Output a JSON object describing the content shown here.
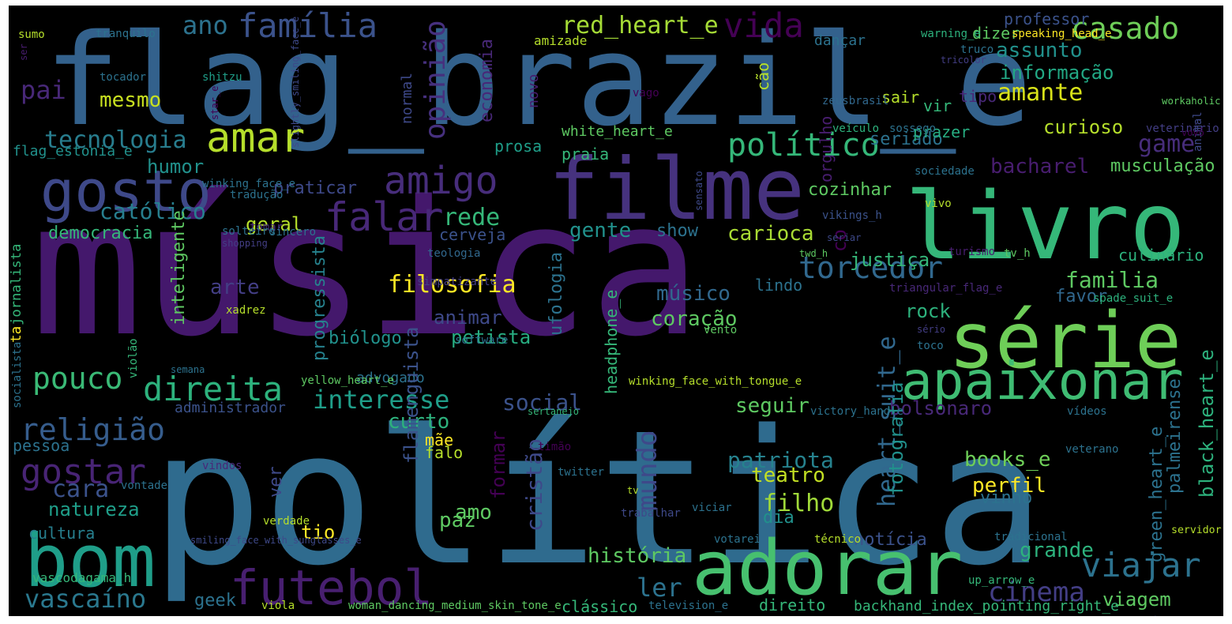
{
  "wordcloud": {
    "background": "#000000",
    "palette": [
      "#440154",
      "#482878",
      "#3e4989",
      "#31688e",
      "#26828e",
      "#1f9e89",
      "#35b779",
      "#6ece58",
      "#b5de2b",
      "#fde725"
    ],
    "words": [
      {
        "text": "música",
        "color": "#44186c"
      },
      {
        "text": "política",
        "color": "#2f6b8e"
      },
      {
        "text": "flag_brazil_e",
        "color": "#33618c"
      },
      {
        "text": "livro",
        "color": "#35b779"
      },
      {
        "text": "filme",
        "color": "#46327e"
      },
      {
        "text": "série",
        "color": "#6ece58"
      },
      {
        "text": "adorar",
        "color": "#47c06f"
      },
      {
        "text": "futebol",
        "color": "#481f70"
      },
      {
        "text": "bom",
        "color": "#1f9e89"
      },
      {
        "text": "apaixonar",
        "color": "#3fbc73"
      },
      {
        "text": "gosto",
        "color": "#3e4989"
      },
      {
        "text": "amar",
        "color": "#b5de2b"
      },
      {
        "text": "amigo",
        "color": "#472d7b"
      },
      {
        "text": "falar",
        "color": "#482878"
      },
      {
        "text": "direita",
        "color": "#2db27d"
      },
      {
        "text": "político",
        "color": "#35b779"
      },
      {
        "text": "torcedor",
        "color": "#31688e"
      },
      {
        "text": "viajar",
        "color": "#2c728e"
      },
      {
        "text": "religião",
        "color": "#365d8d"
      },
      {
        "text": "gostar",
        "color": "#482475"
      },
      {
        "text": "pouco",
        "color": "#3aba76"
      },
      {
        "text": "cinema",
        "color": "#433e85"
      },
      {
        "text": "vascaíno",
        "color": "#2a788e"
      },
      {
        "text": "casado",
        "color": "#6ece58"
      },
      {
        "text": "vida",
        "color": "#440154"
      },
      {
        "text": "família",
        "color": "#3b528b"
      },
      {
        "text": "red_heart_e",
        "color": "#a5db36"
      },
      {
        "text": "opinião",
        "color": "#46307e"
      },
      {
        "text": "tecnologia",
        "color": "#287d8e"
      },
      {
        "text": "católico",
        "color": "#277f8e"
      },
      {
        "text": "amante",
        "color": "#d8e219"
      },
      {
        "text": "game",
        "color": "#472d7b"
      },
      {
        "text": "heart_suit_e",
        "color": "#31688e"
      },
      {
        "text": "mundo",
        "color": "#3e4989"
      },
      {
        "text": "rede",
        "color": "#35b779"
      },
      {
        "text": "filosofia",
        "color": "#fde725"
      },
      {
        "text": "patriota",
        "color": "#26828e"
      },
      {
        "text": "filho",
        "color": "#a0da39"
      },
      {
        "text": "ler",
        "color": "#2c728e"
      },
      {
        "text": "interesse",
        "color": "#1f9e89"
      },
      {
        "text": "social",
        "color": "#3b528b"
      },
      {
        "text": "humor",
        "color": "#21918c"
      },
      {
        "text": "pai",
        "color": "#482878"
      },
      {
        "text": "ano",
        "color": "#2c728e"
      },
      {
        "text": "assunto",
        "color": "#21918c"
      },
      {
        "text": "informação",
        "color": "#22a884"
      },
      {
        "text": "mesmo",
        "color": "#c8e020"
      },
      {
        "text": "economia",
        "color": "#482878"
      },
      {
        "text": "bacharel",
        "color": "#481d6f"
      },
      {
        "text": "musculação",
        "color": "#5ec962"
      },
      {
        "text": "curioso",
        "color": "#b5de2b"
      },
      {
        "text": "seriado",
        "color": "#2c728e"
      },
      {
        "text": "carioca",
        "color": "#a8db34"
      },
      {
        "text": "gente",
        "color": "#21918c"
      },
      {
        "text": "geral",
        "color": "#b5de2b"
      },
      {
        "text": "praticar",
        "color": "#3e4989"
      },
      {
        "text": "orgulho",
        "color": "#481d6f"
      },
      {
        "text": "cozinhar",
        "color": "#5ec962"
      },
      {
        "text": "show",
        "color": "#2c728e"
      },
      {
        "text": "cerveja",
        "color": "#3b528b"
      },
      {
        "text": "democracia",
        "color": "#35b779"
      },
      {
        "text": "arte",
        "color": "#433e85"
      },
      {
        "text": "músico",
        "color": "#31688e"
      },
      {
        "text": "coração",
        "color": "#5ec962"
      },
      {
        "text": "rock",
        "color": "#2db27d"
      },
      {
        "text": "familia",
        "color": "#5ec962"
      },
      {
        "text": "justiça",
        "color": "#35b779"
      },
      {
        "text": "culinário",
        "color": "#2db27d"
      },
      {
        "text": "lindo",
        "color": "#2c728e"
      },
      {
        "text": "favor",
        "color": "#31688e"
      },
      {
        "text": "animar",
        "color": "#3e4989"
      },
      {
        "text": "petista",
        "color": "#27ad81"
      },
      {
        "text": "biólogo",
        "color": "#21918c"
      },
      {
        "text": "cara",
        "color": "#3b528b"
      },
      {
        "text": "natureza",
        "color": "#1f9e89"
      },
      {
        "text": "cultura",
        "color": "#277f8e"
      },
      {
        "text": "pessoa",
        "color": "#2c728e"
      },
      {
        "text": "administrador",
        "color": "#3b528b"
      },
      {
        "text": "advogado",
        "color": "#2c728e"
      },
      {
        "text": "seguir",
        "color": "#5ec962"
      },
      {
        "text": "curto",
        "color": "#2db27d"
      },
      {
        "text": "bolsonaro",
        "color": "#482878"
      },
      {
        "text": "books_e",
        "color": "#6ece58"
      },
      {
        "text": "perfil",
        "color": "#fde725"
      },
      {
        "text": "vinho",
        "color": "#2c728e"
      },
      {
        "text": "teatro",
        "color": "#c2df23"
      },
      {
        "text": "paz",
        "color": "#5ec962"
      },
      {
        "text": "amo",
        "color": "#5ec962"
      },
      {
        "text": "história",
        "color": "#5ec962"
      },
      {
        "text": "grande",
        "color": "#2db27d"
      },
      {
        "text": "notícia",
        "color": "#3b528b"
      },
      {
        "text": "geek",
        "color": "#2c728e"
      },
      {
        "text": "clássico",
        "color": "#35b779"
      },
      {
        "text": "direito",
        "color": "#35b779"
      },
      {
        "text": "viagem",
        "color": "#5ec962"
      },
      {
        "text": "backhand_index_pointing_right_e",
        "color": "#35b779"
      },
      {
        "text": "tio",
        "color": "#fde725"
      },
      {
        "text": "mãe",
        "color": "#fde725"
      },
      {
        "text": "falo",
        "color": "#b5de2b"
      },
      {
        "text": "ver",
        "color": "#3e4989"
      },
      {
        "text": "formar",
        "color": "#440154"
      },
      {
        "text": "dia",
        "color": "#21918c"
      },
      {
        "text": "ta",
        "color": "#fde725"
      },
      {
        "text": "jornalista",
        "color": "#35b779"
      },
      {
        "text": "inteligente",
        "color": "#5ec962"
      },
      {
        "text": "progressista",
        "color": "#26828e"
      },
      {
        "text": "cristão",
        "color": "#3e4989"
      },
      {
        "text": "flamenguista",
        "color": "#3b528b"
      },
      {
        "text": "ufologia",
        "color": "#2c728e"
      },
      {
        "text": "headphone_e",
        "color": "#35b779"
      },
      {
        "text": "fotografia",
        "color": "#21918c"
      },
      {
        "text": "palmeirense",
        "color": "#2c728e"
      },
      {
        "text": "black_heart_e",
        "color": "#2db27d"
      },
      {
        "text": "green_heart_e",
        "color": "#2c728e"
      },
      {
        "text": "co",
        "color": "#440154"
      },
      {
        "text": "white_heart_e",
        "color": "#5ec962"
      },
      {
        "text": "prosa",
        "color": "#1f9e89"
      },
      {
        "text": "praia",
        "color": "#35b779"
      },
      {
        "text": "prazer",
        "color": "#27ad81"
      },
      {
        "text": "sair",
        "color": "#b5de2b"
      },
      {
        "text": "vir",
        "color": "#35b779"
      },
      {
        "text": "tipo",
        "color": "#482878"
      },
      {
        "text": "dizer",
        "color": "#5ec962"
      },
      {
        "text": "professor",
        "color": "#3b528b"
      },
      {
        "text": "dançar",
        "color": "#2c728e"
      },
      {
        "text": "cão",
        "color": "#b5de2b"
      },
      {
        "text": "normal",
        "color": "#3e4989"
      },
      {
        "text": "novo",
        "color": "#481d6f"
      },
      {
        "text": "amizade",
        "color": "#b5de2b"
      },
      {
        "text": "tranquilo",
        "color": "#2c728e"
      },
      {
        "text": "sumo",
        "color": "#b5de2b"
      },
      {
        "text": "ser",
        "color": "#481d6f"
      },
      {
        "text": "tocador",
        "color": "#2c728e"
      },
      {
        "text": "shitzu",
        "color": "#1f9e89"
      },
      {
        "text": "star_e",
        "color": "#440154"
      },
      {
        "text": "slightly_smiling_face_e",
        "color": "#3e4989"
      },
      {
        "text": "warning_e",
        "color": "#2db27d"
      },
      {
        "text": "speaking_head_e",
        "color": "#fde725"
      },
      {
        "text": "tricolor",
        "color": "#433e85"
      },
      {
        "text": "truco",
        "color": "#2c728e"
      },
      {
        "text": "vago",
        "color": "#440154"
      },
      {
        "text": "zeusbrasil",
        "color": "#31688e"
      },
      {
        "text": "veículo",
        "color": "#2db27d"
      },
      {
        "text": "veterinário",
        "color": "#433e85"
      },
      {
        "text": "workaholic",
        "color": "#5ec962"
      },
      {
        "text": "animal",
        "color": "#3e4989"
      },
      {
        "text": "vovô",
        "color": "#440154"
      },
      {
        "text": "sossego",
        "color": "#2c728e"
      },
      {
        "text": "sociedade",
        "color": "#2c728e"
      },
      {
        "text": "flag_estonia_e",
        "color": "#21918c"
      },
      {
        "text": "winking_face_e",
        "color": "#2c728e"
      },
      {
        "text": "tradução",
        "color": "#2c728e"
      },
      {
        "text": "tomar",
        "color": "#482878"
      },
      {
        "text": "sensato",
        "color": "#3e4989"
      },
      {
        "text": "vikings_h",
        "color": "#3b528b"
      },
      {
        "text": "vivo",
        "color": "#b5de2b"
      },
      {
        "text": "solteiro",
        "color": "#2c728e"
      },
      {
        "text": "shopping",
        "color": "#433e85"
      },
      {
        "text": "sincero",
        "color": "#2c728e"
      },
      {
        "text": "seriar",
        "color": "#3e4989"
      },
      {
        "text": "teologia",
        "color": "#31688e"
      },
      {
        "text": "turismo",
        "color": "#481d6f"
      },
      {
        "text": "tv_h",
        "color": "#5ec962"
      },
      {
        "text": "twd_h",
        "color": "#5ec962"
      },
      {
        "text": "triangular_flag_e",
        "color": "#482878"
      },
      {
        "text": "simpatizante",
        "color": "#433e85"
      },
      {
        "text": "xadrez",
        "color": "#b5de2b"
      },
      {
        "text": "spade_suit_e",
        "color": "#2db27d"
      },
      {
        "text": "vento",
        "color": "#5ec962"
      },
      {
        "text": "sério",
        "color": "#433e85"
      },
      {
        "text": "software",
        "color": "#2c728e"
      },
      {
        "text": "toco",
        "color": "#2c728e"
      },
      {
        "text": "socialista",
        "color": "#2c728e"
      },
      {
        "text": "violão",
        "color": "#35b779"
      },
      {
        "text": "semana",
        "color": "#2c728e"
      },
      {
        "text": "yellow_heart_e",
        "color": "#5ec962"
      },
      {
        "text": "winking_face_with_tongue_e",
        "color": "#b5de2b"
      },
      {
        "text": "sertanejo",
        "color": "#35b779"
      },
      {
        "text": "victory_hand_e",
        "color": "#2c728e"
      },
      {
        "text": "vídeos",
        "color": "#2c728e"
      },
      {
        "text": "timão",
        "color": "#440154"
      },
      {
        "text": "veterano",
        "color": "#2c728e"
      },
      {
        "text": "vindos",
        "color": "#482878"
      },
      {
        "text": "twitter",
        "color": "#2c728e"
      },
      {
        "text": "vontade",
        "color": "#2c728e"
      },
      {
        "text": "tv",
        "color": "#b5de2b"
      },
      {
        "text": "viciar",
        "color": "#2c728e"
      },
      {
        "text": "trabalhar",
        "color": "#3e4989"
      },
      {
        "text": "verdade",
        "color": "#b5de2b"
      },
      {
        "text": "smiling_face_with_sunglasses_e",
        "color": "#3e4989"
      },
      {
        "text": "votarei",
        "color": "#2c728e"
      },
      {
        "text": "técnico",
        "color": "#b5de2b"
      },
      {
        "text": "tradicional",
        "color": "#2c728e"
      },
      {
        "text": "servidor",
        "color": "#b5de2b"
      },
      {
        "text": "up_arrow_e",
        "color": "#35b779"
      },
      {
        "text": "vascodagama_h",
        "color": "#35b779"
      },
      {
        "text": "viola",
        "color": "#b5de2b"
      },
      {
        "text": "woman_dancing_medium_skin_tone_e",
        "color": "#5ec962"
      },
      {
        "text": "television_e",
        "color": "#2c728e"
      },
      {
        "text": "trazer",
        "color": "#3e4989"
      }
    ]
  }
}
